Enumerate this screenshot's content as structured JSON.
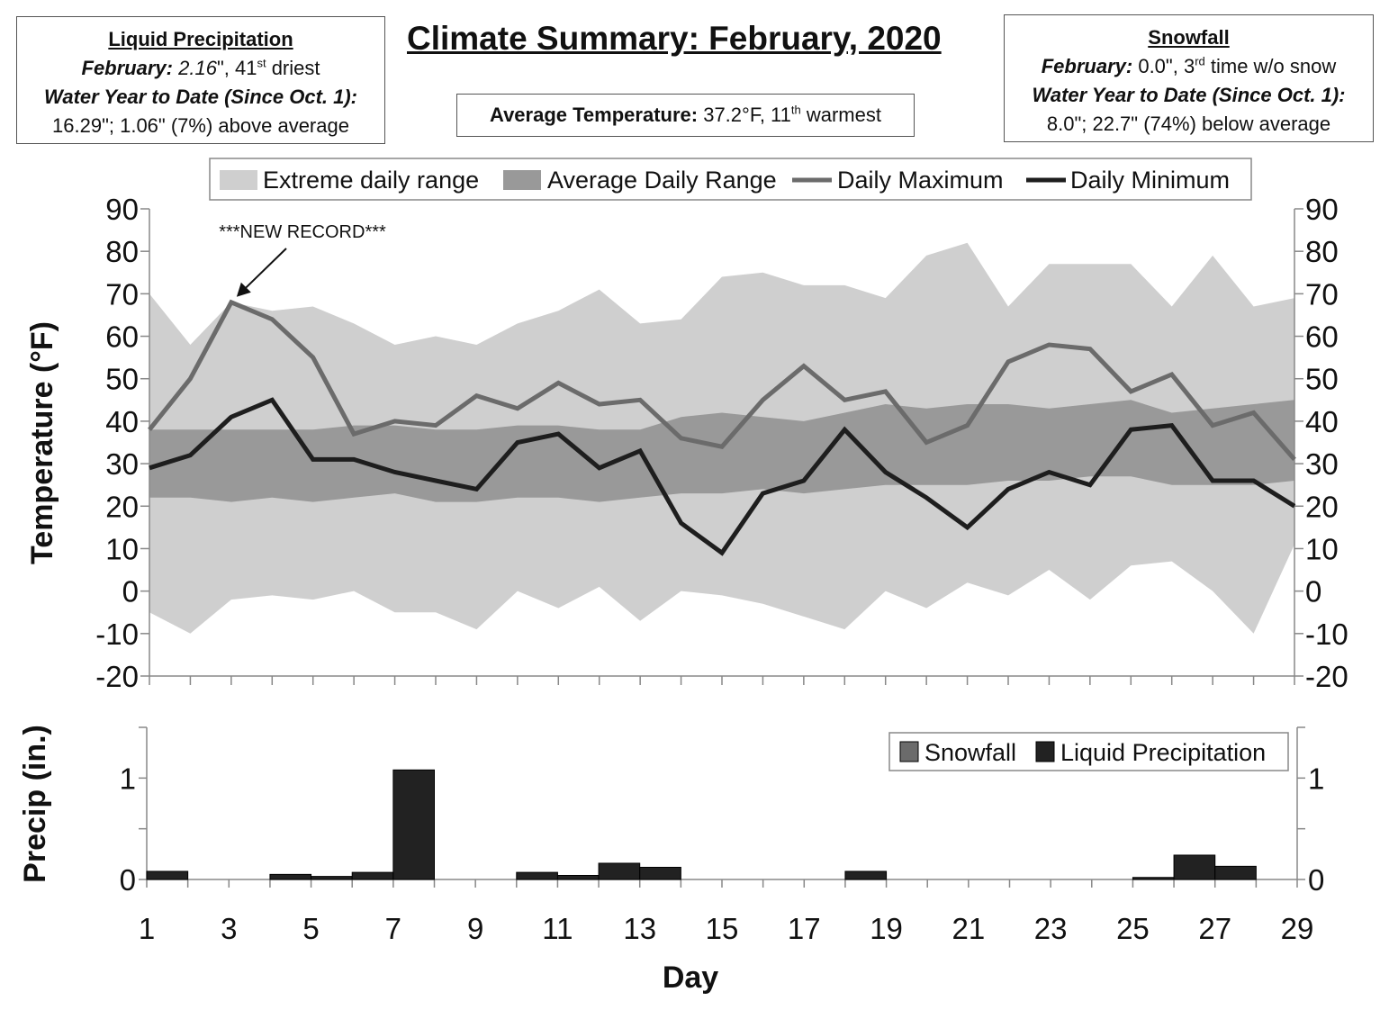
{
  "title": "Climate Summary: February, 2020",
  "liquid_box": {
    "heading": "Liquid Precipitation",
    "month_label": "February:",
    "month_value": "2.16",
    "month_rank": "\", 41",
    "month_rank_sup": "st",
    "month_rank_tail": " driest",
    "wytd_label": "Water Year to Date (Since Oct. 1):",
    "wytd_value": "16.29\"; 1.06\" (7%) above average"
  },
  "snow_box": {
    "heading": "Snowfall",
    "month_label": "February:",
    "month_value": " 0.0\", 3",
    "month_sup": "rd",
    "month_tail": " time w/o snow",
    "wytd_label": "Water Year to Date (Since Oct. 1):",
    "wytd_value": "8.0\"; 22.7\" (74%) below average"
  },
  "temp_box": {
    "label": "Average Temperature:",
    "value": " 37.2°F, 11",
    "sup": "th",
    "tail": " warmest"
  },
  "chart_data": [
    {
      "type": "line",
      "ylabel": "Temperature  (°F)",
      "ylim": [
        -20,
        90
      ],
      "yticks": [
        90,
        80,
        70,
        60,
        50,
        40,
        30,
        20,
        10,
        0,
        -10,
        -20
      ],
      "legend_position": "top",
      "annotation": {
        "text": "***NEW RECORD***",
        "day": 3,
        "value": 68
      },
      "x": [
        1,
        2,
        3,
        4,
        5,
        6,
        7,
        8,
        9,
        10,
        11,
        12,
        13,
        14,
        15,
        16,
        17,
        18,
        19,
        20,
        21,
        22,
        23,
        24,
        25,
        26,
        27,
        28,
        29
      ],
      "series": [
        {
          "name": "Extreme daily range",
          "kind": "band",
          "color": "#cfcfcf",
          "upper": [
            70,
            58,
            68,
            66,
            67,
            63,
            58,
            60,
            58,
            63,
            66,
            71,
            63,
            64,
            74,
            75,
            72,
            72,
            69,
            79,
            82,
            67,
            77,
            77,
            77,
            67,
            79,
            67,
            69
          ],
          "lower": [
            -5,
            -10,
            -2,
            -1,
            -2,
            0,
            -5,
            -5,
            -9,
            0,
            -4,
            1,
            -7,
            0,
            -1,
            -3,
            -6,
            -9,
            0,
            -4,
            2,
            -1,
            5,
            -2,
            6,
            7,
            0,
            -10,
            11
          ]
        },
        {
          "name": "Average Daily Range",
          "kind": "band",
          "color": "#999999",
          "upper": [
            38,
            38,
            38,
            38,
            38,
            39,
            39,
            38,
            38,
            39,
            39,
            38,
            38,
            41,
            42,
            41,
            40,
            42,
            44,
            43,
            44,
            44,
            43,
            44,
            45,
            42,
            43,
            44,
            45
          ],
          "lower": [
            22,
            22,
            21,
            22,
            21,
            22,
            23,
            21,
            21,
            22,
            22,
            21,
            22,
            23,
            23,
            24,
            23,
            24,
            25,
            25,
            25,
            26,
            26,
            27,
            27,
            25,
            25,
            25,
            26
          ]
        },
        {
          "name": "Daily Maximum",
          "kind": "line",
          "color": "#6b6b6b",
          "values": [
            38,
            50,
            68,
            64,
            55,
            37,
            40,
            39,
            46,
            43,
            49,
            44,
            45,
            36,
            34,
            45,
            53,
            45,
            47,
            35,
            39,
            54,
            58,
            57,
            47,
            51,
            39,
            42,
            31
          ]
        },
        {
          "name": "Daily Minimum",
          "kind": "line",
          "color": "#1e1e1e",
          "values": [
            29,
            32,
            41,
            45,
            31,
            31,
            28,
            26,
            24,
            35,
            37,
            29,
            33,
            16,
            9,
            23,
            26,
            38,
            28,
            22,
            15,
            24,
            28,
            25,
            38,
            39,
            26,
            26,
            20
          ]
        }
      ]
    },
    {
      "type": "bar",
      "xlabel": "Day",
      "ylabel": "Precip (in.)",
      "ylim": [
        0,
        1.5
      ],
      "yticks": [
        0,
        1
      ],
      "xticks": [
        1,
        3,
        5,
        7,
        9,
        11,
        13,
        15,
        17,
        19,
        21,
        23,
        25,
        27,
        29
      ],
      "legend_position": "top-right",
      "categories": [
        1,
        2,
        3,
        4,
        5,
        6,
        7,
        8,
        9,
        10,
        11,
        12,
        13,
        14,
        15,
        16,
        17,
        18,
        19,
        20,
        21,
        22,
        23,
        24,
        25,
        26,
        27,
        28
      ],
      "series": [
        {
          "name": "Snowfall",
          "color": "#6b6b6b",
          "values": [
            0,
            0,
            0,
            0,
            0,
            0,
            0,
            0,
            0,
            0,
            0,
            0,
            0,
            0,
            0,
            0,
            0,
            0,
            0,
            0,
            0,
            0,
            0,
            0,
            0,
            0,
            0,
            0
          ]
        },
        {
          "name": "Liquid Precipitation",
          "color": "#222222",
          "values": [
            0.08,
            0,
            0,
            0.05,
            0.03,
            0.07,
            1.08,
            0,
            0,
            0.07,
            0.04,
            0.16,
            0.12,
            0,
            0,
            0,
            0,
            0.08,
            0,
            0,
            0,
            0,
            0,
            0,
            0.02,
            0.24,
            0.13,
            0
          ]
        }
      ]
    }
  ]
}
